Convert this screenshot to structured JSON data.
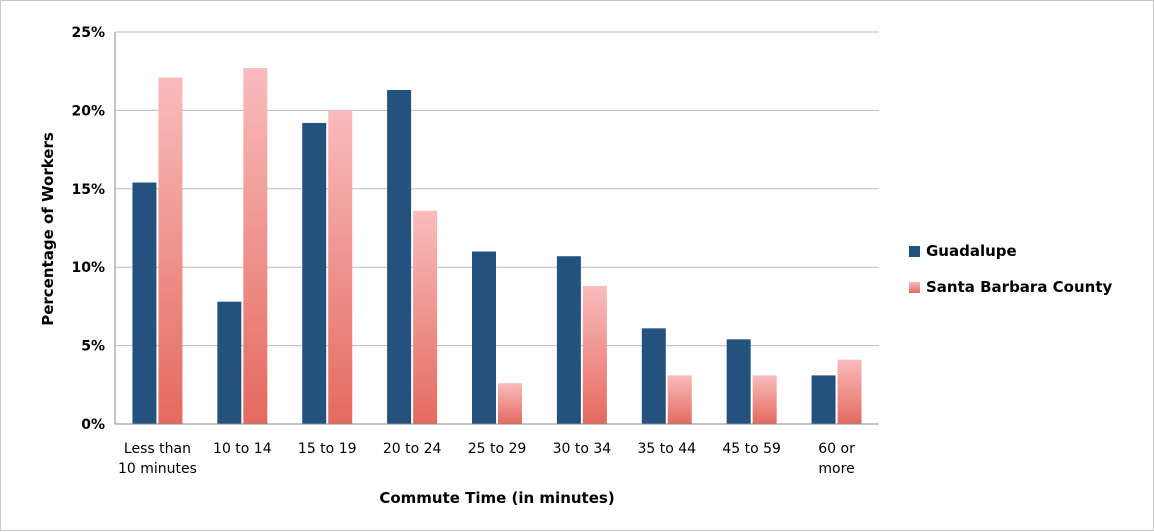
{
  "chart_data": {
    "type": "bar",
    "title": "",
    "xlabel": "Commute Time (in minutes)",
    "ylabel": "Percentage of Workers",
    "ylim": [
      0,
      25
    ],
    "y_ticks": [
      "0%",
      "5%",
      "10%",
      "15%",
      "20%",
      "25%"
    ],
    "y_tick_values": [
      0,
      5,
      10,
      15,
      20,
      25
    ],
    "grid": true,
    "legend_position": "right",
    "categories": [
      [
        "Less than",
        "10 minutes"
      ],
      [
        "10 to 14"
      ],
      [
        "15 to 19"
      ],
      [
        "20 to 24"
      ],
      [
        "25 to 29"
      ],
      [
        "30 to 34"
      ],
      [
        "35 to 44"
      ],
      [
        "45 to 59"
      ],
      [
        "60 or",
        "more"
      ]
    ],
    "series": [
      {
        "name": "Guadalupe",
        "color": "#24527e",
        "values": [
          15.4,
          7.8,
          19.2,
          21.3,
          11.0,
          10.7,
          6.1,
          5.4,
          3.1
        ]
      },
      {
        "name": "Santa Barbara County",
        "color_top": "#f9bcbc",
        "color_bottom": "#e46a5f",
        "values": [
          22.1,
          22.7,
          20.0,
          13.6,
          2.6,
          8.8,
          3.1,
          3.1,
          4.1
        ]
      }
    ]
  }
}
